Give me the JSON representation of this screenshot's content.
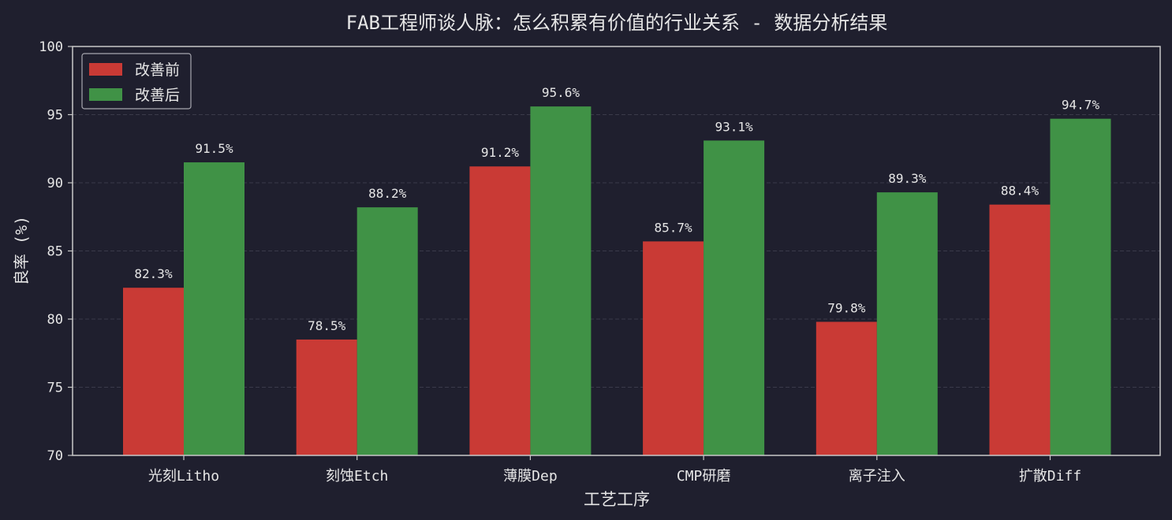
{
  "chart_data": {
    "type": "bar",
    "title": "FAB工程师谈人脉：怎么积累有价值的行业关系 - 数据分析结果",
    "xlabel": "工艺工序",
    "ylabel": "良率 (%)",
    "ylim": [
      70,
      100
    ],
    "yticks": [
      70,
      75,
      80,
      85,
      90,
      95,
      100
    ],
    "grid": true,
    "legend_position": "top-left",
    "categories": [
      "光刻Litho",
      "刻蚀Etch",
      "薄膜Dep",
      "CMP研磨",
      "离子注入",
      "扩散Diff"
    ],
    "series": [
      {
        "name": "改善前",
        "color": "#c93a35",
        "values": [
          82.3,
          78.5,
          91.2,
          85.7,
          79.8,
          88.4
        ]
      },
      {
        "name": "改善后",
        "color": "#409246",
        "values": [
          91.5,
          88.2,
          95.6,
          93.1,
          89.3,
          94.7
        ]
      }
    ],
    "value_suffix": "%"
  },
  "colors": {
    "background": "#1f1f2e",
    "text": "#e6e6e6",
    "axis": "#c8c8c8",
    "grid": "#3a3a4a"
  }
}
